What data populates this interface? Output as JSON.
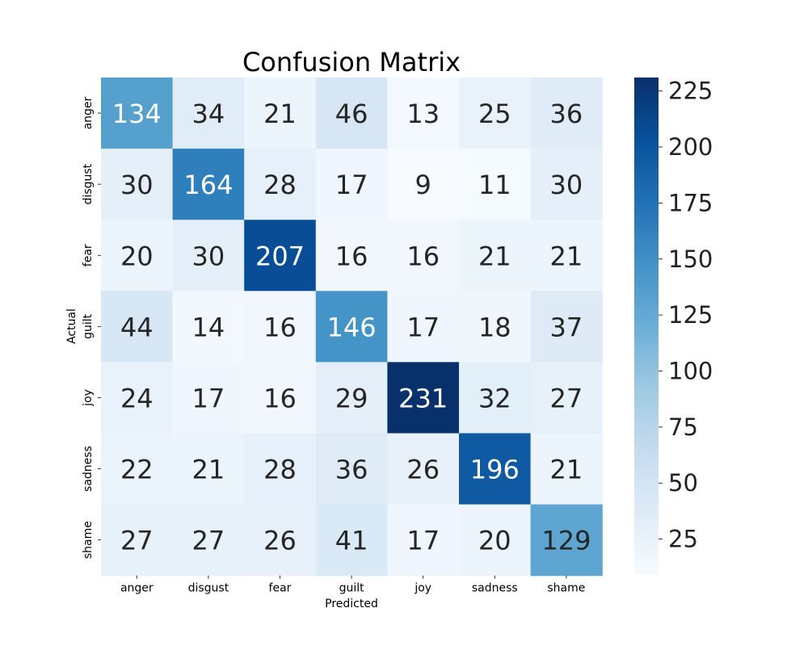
{
  "chart_data": {
    "type": "heatmap",
    "title": "Confusion Matrix",
    "xlabel": "Predicted",
    "ylabel": "Actual",
    "x_categories": [
      "anger",
      "disgust",
      "fear",
      "guilt",
      "joy",
      "sadness",
      "shame"
    ],
    "y_categories": [
      "anger",
      "disgust",
      "fear",
      "guilt",
      "joy",
      "sadness",
      "shame"
    ],
    "values": [
      [
        134,
        34,
        21,
        46,
        13,
        25,
        36
      ],
      [
        30,
        164,
        28,
        17,
        9,
        11,
        30
      ],
      [
        20,
        30,
        207,
        16,
        16,
        21,
        21
      ],
      [
        44,
        14,
        16,
        146,
        17,
        18,
        37
      ],
      [
        24,
        17,
        16,
        29,
        231,
        32,
        27
      ],
      [
        22,
        21,
        28,
        36,
        26,
        196,
        21
      ],
      [
        27,
        27,
        26,
        41,
        17,
        20,
        129
      ]
    ],
    "colormap": "Blues",
    "color_range": [
      9,
      231
    ],
    "colorbar_ticks": [
      25,
      50,
      75,
      100,
      125,
      150,
      175,
      200,
      225
    ]
  }
}
